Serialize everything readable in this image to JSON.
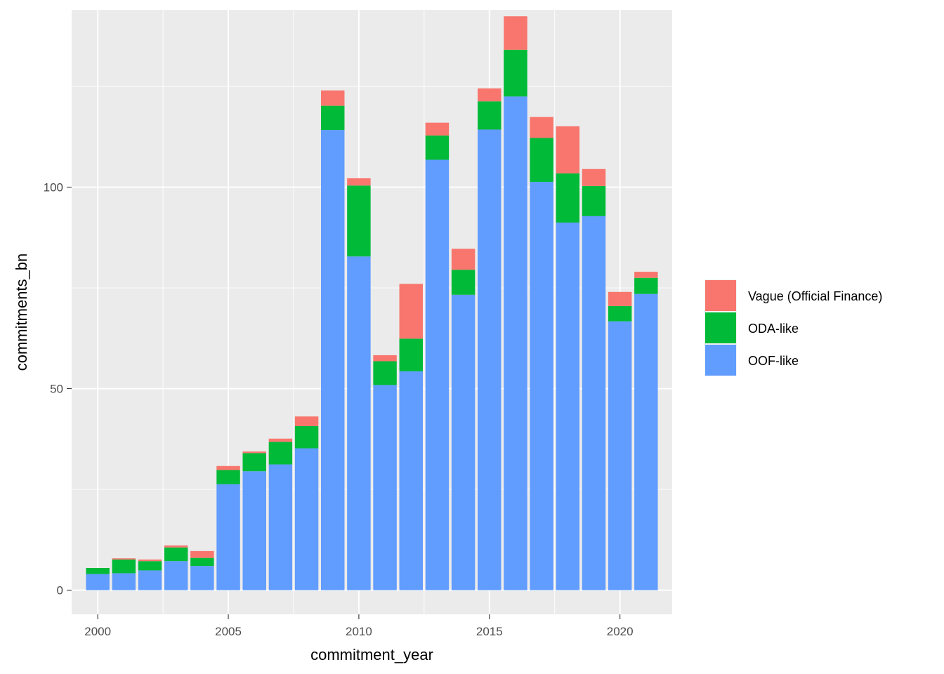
{
  "chart_data": {
    "type": "bar",
    "stacked": true,
    "xlabel": "commitment_year",
    "ylabel": "commitments_bn",
    "xlim": [
      1999,
      2022
    ],
    "ylim": [
      -6,
      144
    ],
    "x_ticks": [
      2000,
      2005,
      2010,
      2015,
      2020
    ],
    "y_ticks": [
      0,
      50,
      100
    ],
    "grid": true,
    "legend_position": "right",
    "categories": [
      2000,
      2001,
      2002,
      2003,
      2004,
      2005,
      2006,
      2007,
      2008,
      2009,
      2010,
      2011,
      2012,
      2013,
      2014,
      2015,
      2016,
      2017,
      2018,
      2019,
      2020,
      2021
    ],
    "series": [
      {
        "name": "OOF-like",
        "color": "#619CFF",
        "values": [
          4.0,
          4.2,
          4.9,
          7.2,
          6.0,
          26.3,
          29.5,
          31.2,
          35.2,
          114.2,
          82.8,
          50.9,
          54.3,
          106.8,
          73.3,
          114.3,
          122.5,
          101.3,
          91.2,
          92.8,
          66.7,
          73.5
        ]
      },
      {
        "name": "ODA-like",
        "color": "#00BA38",
        "values": [
          1.5,
          3.4,
          2.3,
          3.4,
          2.0,
          3.5,
          4.5,
          5.6,
          5.5,
          6.0,
          17.6,
          5.9,
          8.1,
          6.0,
          6.2,
          7.0,
          11.6,
          10.9,
          12.2,
          7.5,
          3.8,
          4.0
        ]
      },
      {
        "name": "Vague (Official Finance)",
        "color": "#F8766D",
        "values": [
          0,
          0.3,
          0.4,
          0.5,
          1.7,
          1.0,
          0.4,
          0.8,
          2.4,
          3.8,
          1.8,
          1.5,
          13.6,
          3.2,
          5.2,
          3.2,
          8.3,
          5.2,
          11.7,
          4.2,
          3.5,
          1.5
        ]
      }
    ],
    "legend": [
      {
        "label": "Vague (Official Finance)",
        "color": "#F8766D"
      },
      {
        "label": "ODA-like",
        "color": "#00BA38"
      },
      {
        "label": "OOF-like",
        "color": "#619CFF"
      }
    ]
  }
}
